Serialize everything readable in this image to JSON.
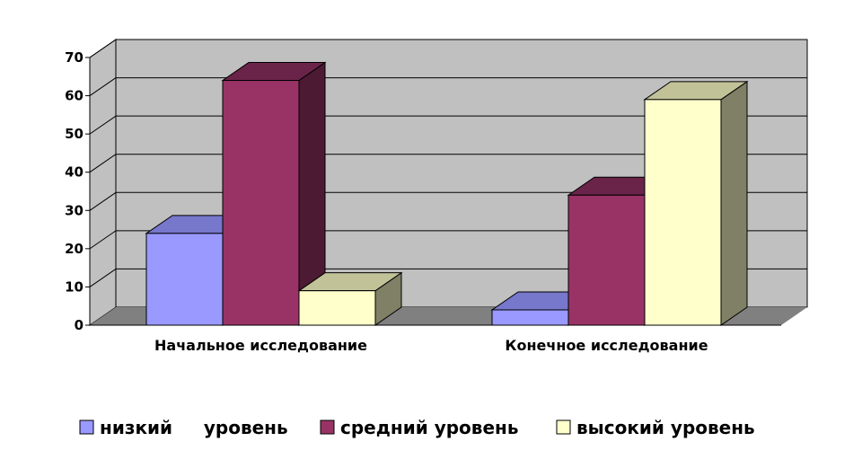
{
  "chart_data": {
    "type": "bar",
    "three_d": true,
    "categories": [
      "Начальное исследование",
      "Конечное исследование"
    ],
    "series": [
      {
        "name": "низкий     уровень",
        "values": [
          24,
          4
        ],
        "color": "#9999ff",
        "top_color": "#7777cc",
        "side_color": "#5c5c99"
      },
      {
        "name": "средний уровень",
        "values": [
          64,
          34
        ],
        "color": "#993366",
        "top_color": "#6b2449",
        "side_color": "#4d1a33"
      },
      {
        "name": "высокий уровень",
        "values": [
          9,
          59
        ],
        "color": "#ffffcc",
        "top_color": "#c2c299",
        "side_color": "#808066"
      }
    ],
    "yticks": [
      0,
      10,
      20,
      30,
      40,
      50,
      60,
      70
    ],
    "ylim": [
      0,
      70
    ],
    "grid": true,
    "legend_position": "bottom",
    "wall_color": "#c0c0c0",
    "floor_color": "#808080"
  }
}
